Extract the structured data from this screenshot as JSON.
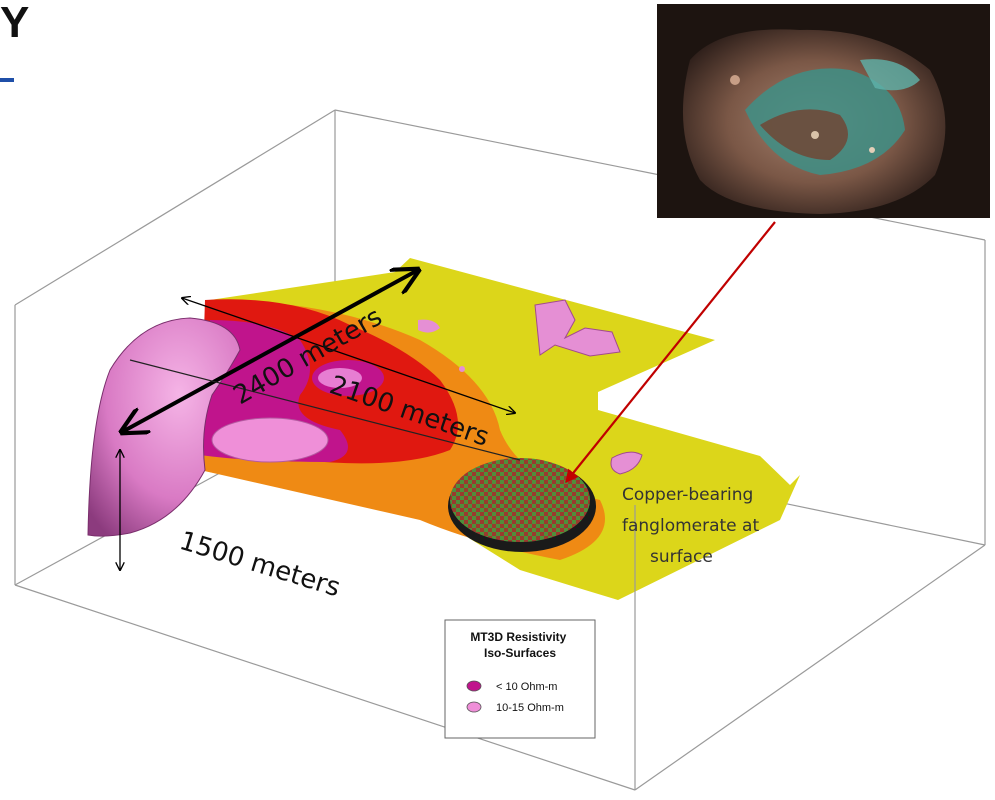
{
  "header": {
    "title_fragment": "Y"
  },
  "dimensions": {
    "length_label": "2400 meters",
    "width_label": "2100 meters",
    "depth_label": "1500 meters"
  },
  "callout": {
    "text_lines": [
      "Copper-bearing",
      "fanglomerate at",
      "surface"
    ],
    "arrow_color": "#c00000"
  },
  "legend": {
    "title_lines": [
      "MT3D Resistivity",
      "Iso-Surfaces"
    ],
    "items": [
      {
        "label": "< 10 Ohm-m",
        "color": "#c0148c"
      },
      {
        "label": "10-15 Ohm-m",
        "color": "#ef8fd8"
      }
    ]
  },
  "colors": {
    "low_resistivity": "#c0148c",
    "mid_resistivity": "#ef8fd8",
    "red_zone": "#e01810",
    "orange_zone": "#ef8a14",
    "yellow_zone": "#dcd61a",
    "box_edge": "#9a9a9a"
  }
}
